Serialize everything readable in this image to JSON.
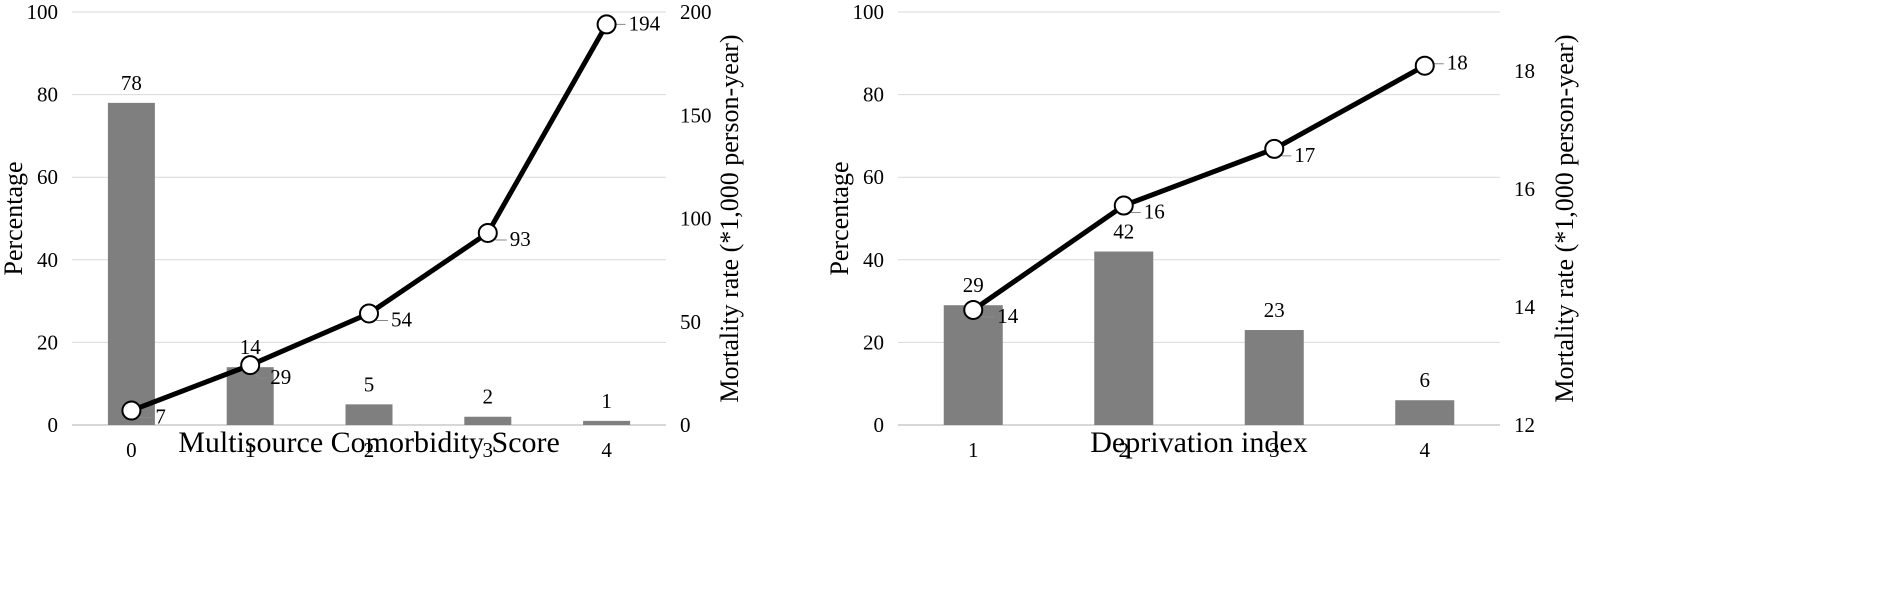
{
  "colors": {
    "bar": "#7f7f7f",
    "line": "#000000",
    "marker_fill": "#ffffff",
    "grid": "#d9d9d9"
  },
  "chart_data": [
    {
      "type": "bar",
      "categories": [
        "0",
        "1",
        "2",
        "3",
        "4"
      ],
      "xlabel": "Multisource Comorbidity Score",
      "ylabel": "Percentage",
      "y2label": "Mortality rate (*1,000 person-year)",
      "ylim": [
        0,
        100
      ],
      "yticks": [
        0,
        20,
        40,
        60,
        80,
        100
      ],
      "y2lim": [
        0,
        200
      ],
      "y2ticks": [
        0,
        50,
        100,
        150,
        200
      ],
      "grid": true,
      "series": [
        {
          "type": "bar",
          "axis": "left",
          "values": [
            78,
            14,
            5,
            2,
            1
          ]
        },
        {
          "type": "line",
          "axis": "right",
          "values": [
            7,
            29,
            54,
            93,
            194
          ]
        }
      ]
    },
    {
      "type": "bar",
      "categories": [
        "1",
        "2",
        "3",
        "4"
      ],
      "xlabel": "Deprivation index",
      "ylabel": "Percentage",
      "y2label": "Mortality rate (*1,000 person-year)",
      "ylim": [
        0,
        100
      ],
      "yticks": [
        0,
        20,
        40,
        60,
        80,
        100
      ],
      "y2lim": [
        12,
        19
      ],
      "y2ticks": [
        12,
        14,
        16,
        18
      ],
      "grid": true,
      "series": [
        {
          "type": "bar",
          "axis": "left",
          "values": [
            29,
            42,
            23,
            6
          ]
        },
        {
          "type": "line",
          "axis": "right",
          "values": [
            14,
            16,
            17,
            18
          ],
          "plotted": [
            13.95,
            15.72,
            16.68,
            18.09
          ]
        }
      ]
    }
  ]
}
